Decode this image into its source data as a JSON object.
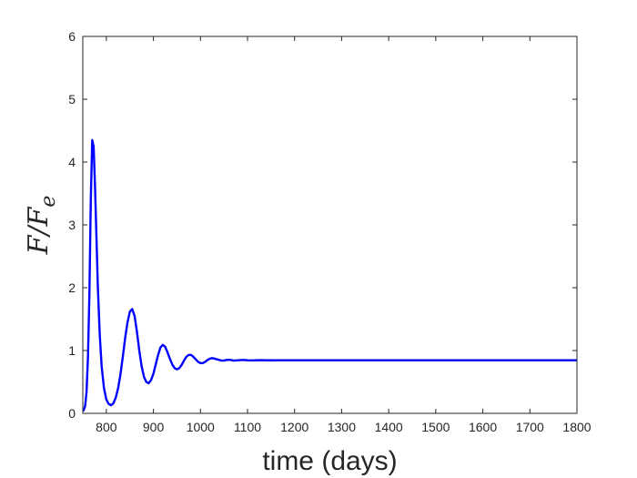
{
  "chart_data": {
    "type": "line",
    "title": "",
    "xlabel": "time (days)",
    "ylabel": "F/F_e",
    "ylabel_parts": {
      "main": "F/F",
      "sub": "e"
    },
    "xlim": [
      750,
      1800
    ],
    "ylim": [
      0,
      6
    ],
    "xticks": [
      800,
      900,
      1000,
      1100,
      1200,
      1300,
      1400,
      1500,
      1600,
      1700,
      1800
    ],
    "xtick_labels": [
      "800",
      "900",
      "1000",
      "1100",
      "1200",
      "1300",
      "1400",
      "1500",
      "1600",
      "1700",
      "1800"
    ],
    "yticks": [
      0,
      1,
      2,
      3,
      4,
      5,
      6
    ],
    "ytick_labels": [
      "0",
      "1",
      "2",
      "3",
      "4",
      "5",
      "6"
    ],
    "grid": false,
    "series": [
      {
        "color": "#0000ff",
        "x": [
          752,
          755,
          758,
          761,
          764,
          767,
          770,
          773,
          776,
          779,
          782,
          786,
          790,
          795,
          800,
          805,
          810,
          815,
          820,
          825,
          830,
          835,
          840,
          845,
          850,
          855,
          860,
          865,
          870,
          875,
          880,
          885,
          890,
          895,
          900,
          905,
          910,
          915,
          920,
          925,
          930,
          935,
          940,
          945,
          950,
          955,
          960,
          965,
          970,
          975,
          980,
          985,
          990,
          995,
          1000,
          1005,
          1010,
          1015,
          1020,
          1025,
          1030,
          1035,
          1040,
          1045,
          1050,
          1055,
          1060,
          1065,
          1070,
          1080,
          1090,
          1100,
          1110,
          1120,
          1130,
          1140,
          1150,
          1160,
          1170,
          1180,
          1190,
          1200,
          1210,
          1220,
          1230,
          1250,
          1300,
          1400,
          1500,
          1600,
          1700,
          1800
        ],
        "y": [
          0.05,
          0.12,
          0.35,
          0.9,
          1.9,
          3.4,
          4.35,
          4.25,
          3.6,
          2.8,
          2.0,
          1.25,
          0.75,
          0.4,
          0.22,
          0.15,
          0.13,
          0.16,
          0.25,
          0.4,
          0.62,
          0.9,
          1.2,
          1.45,
          1.62,
          1.66,
          1.55,
          1.3,
          1.0,
          0.75,
          0.58,
          0.5,
          0.48,
          0.53,
          0.63,
          0.78,
          0.93,
          1.05,
          1.09,
          1.06,
          0.97,
          0.87,
          0.78,
          0.72,
          0.7,
          0.72,
          0.77,
          0.84,
          0.9,
          0.93,
          0.93,
          0.9,
          0.86,
          0.82,
          0.8,
          0.8,
          0.82,
          0.85,
          0.87,
          0.88,
          0.87,
          0.86,
          0.85,
          0.84,
          0.84,
          0.85,
          0.85,
          0.85,
          0.84,
          0.845,
          0.85,
          0.845,
          0.843,
          0.845,
          0.846,
          0.845,
          0.844,
          0.845,
          0.845,
          0.845,
          0.845,
          0.845,
          0.845,
          0.845,
          0.845,
          0.845,
          0.845,
          0.845,
          0.845,
          0.845,
          0.845,
          0.845
        ]
      }
    ]
  }
}
